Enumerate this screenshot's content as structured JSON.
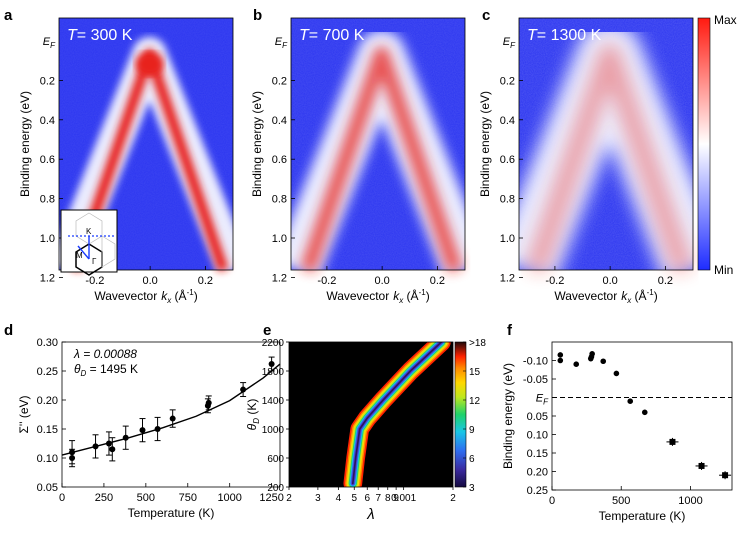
{
  "panel_letters": {
    "a": "a",
    "b": "b",
    "c": "c",
    "d": "d",
    "e": "e",
    "f": "f"
  },
  "arpes": {
    "xlabel": "Wavevector",
    "xlabel_sym": "k",
    "xlabel_sub": "x",
    "xlabel_unit": " (Å",
    "xlabel_exp": "-1",
    "xlabel_close": ")",
    "ylabel": "Binding energy (eV)",
    "ef_main": "E",
    "ef_sub": "F",
    "xticks": [
      "-0.2",
      "0.0",
      "0.2"
    ],
    "yticks": [
      "0.2",
      "0.4",
      "0.6",
      "0.8",
      "1.0",
      "1.2"
    ],
    "panels": [
      {
        "T_label": "T",
        "T_value": "= 300 K",
        "intensity": 1.0,
        "width": 0.9
      },
      {
        "T_label": "T",
        "T_value": "= 700 K",
        "intensity": 0.75,
        "width": 1.25
      },
      {
        "T_label": "T",
        "T_value": "= 1300 K",
        "intensity": 0.38,
        "width": 1.7
      }
    ],
    "colorbar": {
      "max": "Max",
      "min": "Min"
    },
    "inset": {
      "K_label": "K",
      "M_label": "M",
      "G_label": "Γ"
    },
    "colors": {
      "low": "#2b35f0",
      "mid": "#ffffff",
      "high": "#e8211c"
    }
  },
  "chart_data": [
    {
      "type": "scatter",
      "panel": "d",
      "xlabel": "Temperature (K)",
      "ylabel": "Σ'' (eV)",
      "xlim": [
        0,
        1300
      ],
      "ylim": [
        0.05,
        0.3
      ],
      "xticks": [
        "0",
        "250",
        "500",
        "750",
        "1000",
        "1250"
      ],
      "yticks": [
        "0.05",
        "0.10",
        "0.15",
        "0.20",
        "0.25",
        "0.30"
      ],
      "annotation_lambda": "λ = 0.00088",
      "annotation_theta": "θ",
      "annotation_theta_sub": "D",
      "annotation_theta_val": " = 1495 K",
      "points": [
        {
          "x": 60,
          "y": 0.11,
          "err": 0.02
        },
        {
          "x": 60,
          "y": 0.1,
          "err": 0.015
        },
        {
          "x": 200,
          "y": 0.12,
          "err": 0.02
        },
        {
          "x": 280,
          "y": 0.125,
          "err": 0.02
        },
        {
          "x": 300,
          "y": 0.115,
          "err": 0.02
        },
        {
          "x": 380,
          "y": 0.135,
          "err": 0.02
        },
        {
          "x": 480,
          "y": 0.148,
          "err": 0.02
        },
        {
          "x": 570,
          "y": 0.15,
          "err": 0.02
        },
        {
          "x": 660,
          "y": 0.168,
          "err": 0.015
        },
        {
          "x": 870,
          "y": 0.19,
          "err": 0.012
        },
        {
          "x": 875,
          "y": 0.195,
          "err": 0.012
        },
        {
          "x": 1080,
          "y": 0.218,
          "err": 0.012
        },
        {
          "x": 1250,
          "y": 0.262,
          "err": 0.012
        }
      ],
      "fit": {
        "x": [
          0,
          200,
          400,
          600,
          800,
          1000,
          1200,
          1300
        ],
        "y": [
          0.105,
          0.12,
          0.135,
          0.152,
          0.172,
          0.199,
          0.238,
          0.262
        ]
      }
    },
    {
      "type": "heatmap",
      "panel": "e",
      "xlabel": "λ",
      "ylabel": "θ",
      "ylabel_sub": "D",
      "ylabel_unit": " (K)",
      "xscale": "log",
      "xlim": [
        0.0002,
        0.002
      ],
      "ylim": [
        200,
        2200
      ],
      "xticks": [
        {
          "v": 0.0002,
          "t": "2"
        },
        {
          "v": 0.0003,
          "t": "3"
        },
        {
          "v": 0.0004,
          "t": "4"
        },
        {
          "v": 0.0005,
          "t": "5"
        },
        {
          "v": 0.0006,
          "t": "6"
        },
        {
          "v": 0.0007,
          "t": "7"
        },
        {
          "v": 0.0008,
          "t": "8"
        },
        {
          "v": 0.0009,
          "t": "9"
        },
        {
          "v": 0.001,
          "t": "0.001"
        },
        {
          "v": 0.002,
          "t": "2"
        }
      ],
      "yticks": [
        "200",
        "600",
        "1000",
        "1400",
        "1800",
        "2200"
      ],
      "colorbar_ticks": [
        {
          "v": 3,
          "t": "3"
        },
        {
          "v": 6,
          "t": "6"
        },
        {
          "v": 9,
          "t": "9"
        },
        {
          "v": 12,
          "t": "12"
        },
        {
          "v": 15,
          "t": "15"
        },
        {
          "v": 18,
          "t": ">18"
        }
      ],
      "valley": {
        "theta": [
          250,
          600,
          1000,
          1150,
          1400,
          1800,
          2200
        ],
        "lambda": [
          0.00049,
          0.00051,
          0.00054,
          0.0006,
          0.00075,
          0.0011,
          0.0017
        ]
      },
      "colors": [
        "#2a1560",
        "#4a3cc8",
        "#2f6df0",
        "#19c6e6",
        "#1ed26a",
        "#bfe81e",
        "#ffd800",
        "#ff8a00",
        "#ff2200",
        "#200808"
      ]
    },
    {
      "type": "scatter",
      "panel": "f",
      "xlabel": "Temperature (K)",
      "ylabel": "Binding energy (eV)",
      "xlim": [
        0,
        1300
      ],
      "ylim": [
        -0.15,
        0.25
      ],
      "inverted_y": true,
      "xticks": [
        "0",
        "500",
        "1000"
      ],
      "yticks": [
        "-0.10",
        "-0.05",
        "E",
        "0.05",
        "0.10",
        "0.15",
        "0.20",
        "0.25"
      ],
      "ef_sub": "F",
      "ef_line": 0.0,
      "points": [
        {
          "x": 60,
          "y": -0.115
        },
        {
          "x": 60,
          "y": -0.1
        },
        {
          "x": 175,
          "y": -0.09
        },
        {
          "x": 280,
          "y": -0.105
        },
        {
          "x": 285,
          "y": -0.11
        },
        {
          "x": 290,
          "y": -0.118
        },
        {
          "x": 370,
          "y": -0.098
        },
        {
          "x": 465,
          "y": -0.065
        },
        {
          "x": 565,
          "y": 0.01
        },
        {
          "x": 670,
          "y": 0.04
        },
        {
          "x": 870,
          "y": 0.12
        },
        {
          "x": 1080,
          "y": 0.185
        },
        {
          "x": 1250,
          "y": 0.21
        }
      ]
    }
  ]
}
